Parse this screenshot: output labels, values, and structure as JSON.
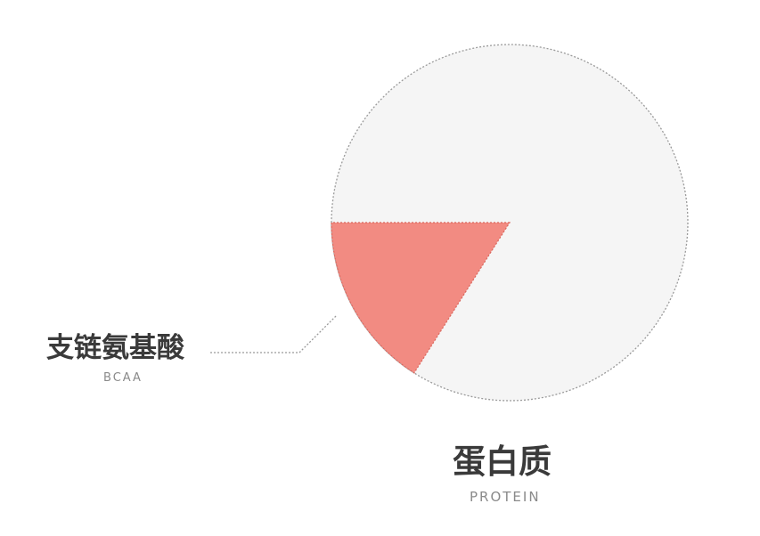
{
  "chart_data": {
    "type": "pie",
    "slices": [
      {
        "label": "蛋白质",
        "sublabel": "PROTEIN",
        "value": 84,
        "color": "#f5f5f5"
      },
      {
        "label": "支链氨基酸",
        "sublabel": "BCAA",
        "value": 16,
        "color": "#f28b82"
      }
    ],
    "title": "",
    "legend": "none"
  },
  "colors": {
    "outline": "#9a9a9a",
    "leader": "#9a9a9a"
  }
}
